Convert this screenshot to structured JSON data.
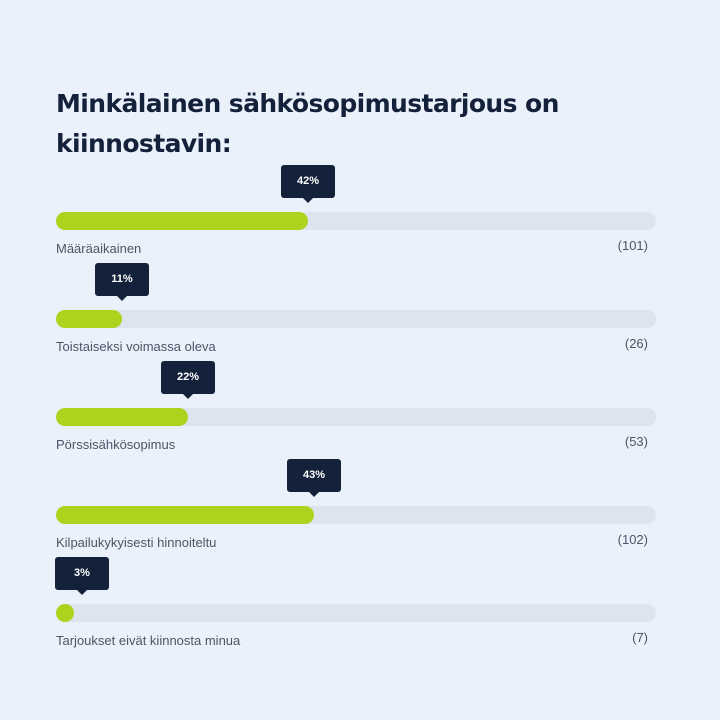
{
  "poll": {
    "title": "Minkälainen sähkösopimustarjous on kiinnostavin:",
    "colors": {
      "background": "#eaf1fa",
      "fill": "#aed31e",
      "track": "#dde4ee",
      "tooltip": "#13223a",
      "title": "#14213a"
    },
    "options": [
      {
        "label": "Määräaikainen",
        "percent_label": "42%",
        "percent": 42,
        "count": "(101)"
      },
      {
        "label": "Toistaiseksi voimassa oleva",
        "percent_label": "11%",
        "percent": 11,
        "count": "(26)"
      },
      {
        "label": "Pörssisähkösopimus",
        "percent_label": "22%",
        "percent": 22,
        "count": "(53)"
      },
      {
        "label": "Kilpailukykyisesti hinnoiteltu",
        "percent_label": "43%",
        "percent": 43,
        "count": "(102)"
      },
      {
        "label": "Tarjoukset eivät kiinnosta minua",
        "percent_label": "3%",
        "percent": 3,
        "count": "(7)"
      }
    ]
  }
}
